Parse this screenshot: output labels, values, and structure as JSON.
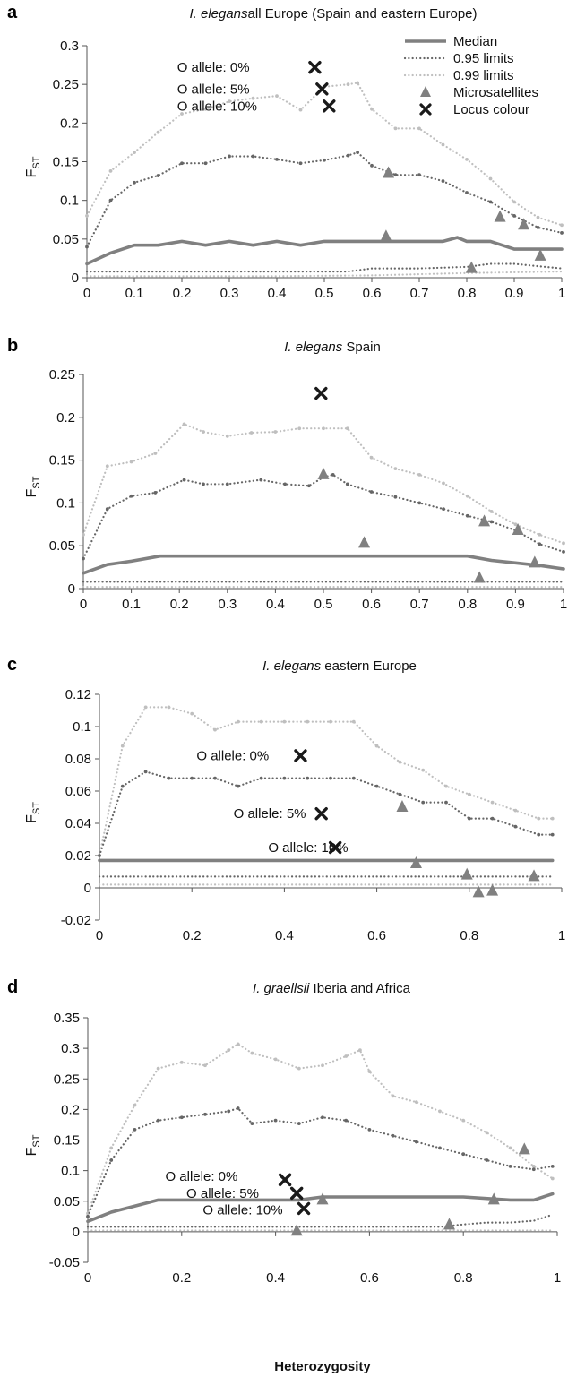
{
  "colors": {
    "median": "#808080",
    "limit95": "#666666",
    "limit99": "#bfbfbf",
    "micro": "#808080",
    "locus": "#1a1a1a",
    "axis": "#555555"
  },
  "legend": {
    "items": [
      {
        "key": "median",
        "label": "Median"
      },
      {
        "key": "limit95",
        "label": "0.95 limits"
      },
      {
        "key": "limit99",
        "label": "0.99 limits"
      },
      {
        "key": "micro",
        "label": "Microsatellites"
      },
      {
        "key": "locus",
        "label": "Locus colour"
      }
    ]
  },
  "xlabel": "Heterozygosity",
  "ylabel": {
    "main": "F",
    "sub": "ST"
  },
  "chart_data": [
    {
      "type": "line",
      "panel_label": "a",
      "title_italic": "I. elegans",
      "title_rest": "all Europe (Spain and eastern Europe)",
      "xlim": [
        0,
        1
      ],
      "ylim": [
        0,
        0.3
      ],
      "xticks": [
        0,
        0.1,
        0.2,
        0.3,
        0.4,
        0.5,
        0.6,
        0.7,
        0.8,
        0.9,
        1
      ],
      "yticks": [
        0,
        0.05,
        0.1,
        0.15,
        0.2,
        0.25,
        0.3
      ],
      "median": {
        "x": [
          0,
          0.05,
          0.1,
          0.15,
          0.2,
          0.25,
          0.3,
          0.35,
          0.4,
          0.45,
          0.5,
          0.55,
          0.6,
          0.65,
          0.7,
          0.75,
          0.78,
          0.8,
          0.85,
          0.9,
          0.95,
          1
        ],
        "y": [
          0.018,
          0.032,
          0.042,
          0.042,
          0.047,
          0.042,
          0.047,
          0.042,
          0.047,
          0.042,
          0.047,
          0.047,
          0.047,
          0.047,
          0.047,
          0.047,
          0.052,
          0.047,
          0.047,
          0.037,
          0.037,
          0.037
        ]
      },
      "upper95": {
        "x": [
          0,
          0.05,
          0.1,
          0.15,
          0.2,
          0.25,
          0.3,
          0.35,
          0.4,
          0.45,
          0.5,
          0.55,
          0.57,
          0.6,
          0.65,
          0.7,
          0.75,
          0.8,
          0.85,
          0.9,
          0.95,
          1
        ],
        "y": [
          0.04,
          0.1,
          0.123,
          0.132,
          0.148,
          0.148,
          0.157,
          0.157,
          0.153,
          0.148,
          0.152,
          0.158,
          0.162,
          0.145,
          0.133,
          0.133,
          0.125,
          0.11,
          0.098,
          0.08,
          0.065,
          0.058
        ]
      },
      "lower95": {
        "x": [
          0,
          0.1,
          0.2,
          0.3,
          0.4,
          0.5,
          0.55,
          0.6,
          0.7,
          0.8,
          0.85,
          0.9,
          0.95,
          1
        ],
        "y": [
          0.008,
          0.008,
          0.008,
          0.008,
          0.008,
          0.008,
          0.008,
          0.012,
          0.012,
          0.014,
          0.018,
          0.018,
          0.015,
          0.012
        ]
      },
      "upper99": {
        "x": [
          0,
          0.05,
          0.1,
          0.15,
          0.2,
          0.25,
          0.3,
          0.35,
          0.4,
          0.45,
          0.5,
          0.55,
          0.57,
          0.6,
          0.65,
          0.7,
          0.75,
          0.8,
          0.85,
          0.9,
          0.95,
          1
        ],
        "y": [
          0.08,
          0.138,
          0.162,
          0.188,
          0.212,
          0.218,
          0.228,
          0.232,
          0.235,
          0.217,
          0.247,
          0.25,
          0.252,
          0.218,
          0.193,
          0.193,
          0.172,
          0.153,
          0.128,
          0.098,
          0.078,
          0.068
        ]
      },
      "lower99": {
        "x": [
          0,
          0.2,
          0.4,
          0.6,
          0.8,
          1
        ],
        "y": [
          0.002,
          0.002,
          0.002,
          0.003,
          0.006,
          0.008
        ]
      },
      "microsatellites": [
        [
          0.63,
          0.053
        ],
        [
          0.635,
          0.135
        ],
        [
          0.81,
          0.012
        ],
        [
          0.87,
          0.078
        ],
        [
          0.92,
          0.068
        ],
        [
          0.955,
          0.028
        ]
      ],
      "loci": [
        {
          "x": 0.48,
          "y": 0.272,
          "label": "O allele: 0%",
          "lx": 0.19,
          "ly": 0.272
        },
        {
          "x": 0.495,
          "y": 0.244,
          "label": "O allele: 5%",
          "lx": 0.19,
          "ly": 0.244
        },
        {
          "x": 0.51,
          "y": 0.222,
          "label": "O allele: 10%",
          "lx": 0.19,
          "ly": 0.222
        }
      ],
      "show_xlabel": false,
      "show_legend": true
    },
    {
      "type": "line",
      "panel_label": "b",
      "title_italic": "I. elegans",
      "title_rest": " Spain",
      "xlim": [
        0,
        1
      ],
      "ylim": [
        0,
        0.25
      ],
      "xticks": [
        0,
        0.1,
        0.2,
        0.3,
        0.4,
        0.5,
        0.6,
        0.7,
        0.8,
        0.9,
        1
      ],
      "yticks": [
        0,
        0.05,
        0.1,
        0.15,
        0.2,
        0.25
      ],
      "median": {
        "x": [
          0,
          0.05,
          0.1,
          0.16,
          0.3,
          0.5,
          0.7,
          0.8,
          0.85,
          0.9,
          0.95,
          1
        ],
        "y": [
          0.018,
          0.028,
          0.032,
          0.038,
          0.038,
          0.038,
          0.038,
          0.038,
          0.033,
          0.03,
          0.027,
          0.023
        ]
      },
      "upper95": {
        "x": [
          0,
          0.05,
          0.1,
          0.15,
          0.21,
          0.25,
          0.3,
          0.37,
          0.42,
          0.47,
          0.5,
          0.52,
          0.55,
          0.6,
          0.65,
          0.7,
          0.75,
          0.8,
          0.85,
          0.9,
          0.95,
          1
        ],
        "y": [
          0.035,
          0.093,
          0.108,
          0.112,
          0.127,
          0.122,
          0.122,
          0.127,
          0.122,
          0.12,
          0.13,
          0.133,
          0.122,
          0.113,
          0.107,
          0.1,
          0.093,
          0.085,
          0.078,
          0.068,
          0.052,
          0.043
        ]
      },
      "lower95": {
        "x": [
          0,
          1
        ],
        "y": [
          0.008,
          0.008
        ]
      },
      "upper99": {
        "x": [
          0,
          0.05,
          0.1,
          0.15,
          0.21,
          0.25,
          0.3,
          0.35,
          0.4,
          0.45,
          0.5,
          0.55,
          0.6,
          0.65,
          0.7,
          0.75,
          0.8,
          0.85,
          0.9,
          0.95,
          1
        ],
        "y": [
          0.063,
          0.143,
          0.148,
          0.158,
          0.192,
          0.183,
          0.178,
          0.182,
          0.183,
          0.187,
          0.187,
          0.187,
          0.153,
          0.14,
          0.133,
          0.123,
          0.108,
          0.09,
          0.075,
          0.063,
          0.053
        ]
      },
      "lower99": {
        "x": [
          0,
          1
        ],
        "y": [
          0.002,
          0.002
        ]
      },
      "microsatellites": [
        [
          0.5,
          0.133
        ],
        [
          0.585,
          0.053
        ],
        [
          0.825,
          0.012
        ],
        [
          0.835,
          0.078
        ],
        [
          0.905,
          0.068
        ],
        [
          0.94,
          0.03
        ]
      ],
      "loci": [
        {
          "x": 0.495,
          "y": 0.228,
          "label": "",
          "lx": 0,
          "ly": 0
        }
      ],
      "show_xlabel": false,
      "show_legend": false
    },
    {
      "type": "line",
      "panel_label": "c",
      "title_italic": "I. elegans",
      "title_rest": " eastern Europe",
      "xlim": [
        0,
        1
      ],
      "ylim": [
        -0.02,
        0.12
      ],
      "xticks": [
        0,
        0.2,
        0.4,
        0.6,
        0.8,
        1
      ],
      "yticks": [
        -0.02,
        0,
        0.02,
        0.04,
        0.06,
        0.08,
        0.1,
        0.12
      ],
      "median": {
        "x": [
          0,
          0.98
        ],
        "y": [
          0.017,
          0.017
        ]
      },
      "upper95": {
        "x": [
          0,
          0.05,
          0.1,
          0.15,
          0.2,
          0.25,
          0.3,
          0.35,
          0.4,
          0.45,
          0.5,
          0.55,
          0.6,
          0.65,
          0.7,
          0.75,
          0.8,
          0.85,
          0.9,
          0.95,
          0.98
        ],
        "y": [
          0.02,
          0.063,
          0.072,
          0.068,
          0.068,
          0.068,
          0.063,
          0.068,
          0.068,
          0.068,
          0.068,
          0.068,
          0.063,
          0.058,
          0.053,
          0.053,
          0.043,
          0.043,
          0.038,
          0.033,
          0.033
        ]
      },
      "lower95": {
        "x": [
          0,
          0.98
        ],
        "y": [
          0.007,
          0.007
        ]
      },
      "upper99": {
        "x": [
          0,
          0.05,
          0.1,
          0.15,
          0.2,
          0.25,
          0.3,
          0.35,
          0.4,
          0.45,
          0.5,
          0.55,
          0.6,
          0.65,
          0.7,
          0.75,
          0.8,
          0.85,
          0.9,
          0.95,
          0.98
        ],
        "y": [
          0.02,
          0.088,
          0.112,
          0.112,
          0.108,
          0.098,
          0.103,
          0.103,
          0.103,
          0.103,
          0.103,
          0.103,
          0.088,
          0.078,
          0.073,
          0.063,
          0.058,
          0.053,
          0.048,
          0.043,
          0.043
        ]
      },
      "lower99": {
        "x": [
          0,
          0.98
        ],
        "y": [
          0.002,
          0.002
        ]
      },
      "microsatellites": [
        [
          0.655,
          0.05
        ],
        [
          0.685,
          0.015
        ],
        [
          0.795,
          0.008
        ],
        [
          0.82,
          -0.003
        ],
        [
          0.85,
          -0.002
        ],
        [
          0.94,
          0.007
        ]
      ],
      "loci": [
        {
          "x": 0.435,
          "y": 0.082,
          "label": "O allele: 0%",
          "lx": 0.21,
          "ly": 0.082
        },
        {
          "x": 0.48,
          "y": 0.046,
          "label": "O allele: 5%",
          "lx": 0.29,
          "ly": 0.046
        },
        {
          "x": 0.51,
          "y": 0.025,
          "label": "O allele: 10%",
          "lx": 0.365,
          "ly": 0.025
        }
      ],
      "show_xlabel": false,
      "show_legend": false
    },
    {
      "type": "line",
      "panel_label": "d",
      "title_italic": "I. graellsii",
      "title_rest": " Iberia and Africa",
      "xlim": [
        0,
        1
      ],
      "ylim": [
        -0.05,
        0.35
      ],
      "xticks": [
        0,
        0.2,
        0.4,
        0.6,
        0.8,
        1
      ],
      "yticks": [
        -0.05,
        0,
        0.05,
        0.1,
        0.15,
        0.2,
        0.25,
        0.3,
        0.35
      ],
      "median": {
        "x": [
          0,
          0.05,
          0.1,
          0.15,
          0.2,
          0.3,
          0.4,
          0.45,
          0.5,
          0.6,
          0.7,
          0.8,
          0.9,
          0.95,
          0.99
        ],
        "y": [
          0.017,
          0.032,
          0.042,
          0.052,
          0.052,
          0.052,
          0.052,
          0.052,
          0.057,
          0.057,
          0.057,
          0.057,
          0.052,
          0.052,
          0.062
        ]
      },
      "upper95": {
        "x": [
          0,
          0.05,
          0.1,
          0.15,
          0.2,
          0.25,
          0.3,
          0.32,
          0.35,
          0.4,
          0.45,
          0.5,
          0.55,
          0.6,
          0.65,
          0.7,
          0.75,
          0.8,
          0.85,
          0.9,
          0.95,
          0.99
        ],
        "y": [
          0.025,
          0.117,
          0.167,
          0.182,
          0.187,
          0.192,
          0.197,
          0.202,
          0.177,
          0.182,
          0.177,
          0.187,
          0.182,
          0.167,
          0.157,
          0.147,
          0.137,
          0.127,
          0.117,
          0.107,
          0.102,
          0.107
        ]
      },
      "lower95": {
        "x": [
          0,
          0.2,
          0.4,
          0.6,
          0.7,
          0.75,
          0.8,
          0.85,
          0.9,
          0.95,
          0.99
        ],
        "y": [
          0.008,
          0.008,
          0.008,
          0.008,
          0.008,
          0.008,
          0.012,
          0.015,
          0.015,
          0.018,
          0.028
        ]
      },
      "upper99": {
        "x": [
          0,
          0.05,
          0.1,
          0.15,
          0.2,
          0.25,
          0.3,
          0.32,
          0.35,
          0.4,
          0.45,
          0.5,
          0.55,
          0.58,
          0.6,
          0.65,
          0.7,
          0.75,
          0.8,
          0.85,
          0.9,
          0.95,
          0.99
        ],
        "y": [
          0.03,
          0.137,
          0.207,
          0.267,
          0.277,
          0.272,
          0.297,
          0.307,
          0.292,
          0.282,
          0.267,
          0.272,
          0.287,
          0.297,
          0.262,
          0.222,
          0.212,
          0.197,
          0.182,
          0.162,
          0.137,
          0.107,
          0.087
        ]
      },
      "lower99": {
        "x": [
          0,
          0.99
        ],
        "y": [
          0.002,
          0.002
        ]
      },
      "microsatellites": [
        [
          0.445,
          0.001
        ],
        [
          0.5,
          0.052
        ],
        [
          0.77,
          0.011
        ],
        [
          0.865,
          0.052
        ],
        [
          0.93,
          0.134
        ]
      ],
      "loci": [
        {
          "x": 0.42,
          "y": 0.085,
          "label": "O allele: 0%",
          "lx": 0.165,
          "ly": 0.091
        },
        {
          "x": 0.445,
          "y": 0.063,
          "label": "O allele: 5%",
          "lx": 0.21,
          "ly": 0.063
        },
        {
          "x": 0.46,
          "y": 0.038,
          "label": "O allele: 10%",
          "lx": 0.245,
          "ly": 0.036
        }
      ],
      "show_xlabel": true,
      "show_legend": false
    }
  ]
}
